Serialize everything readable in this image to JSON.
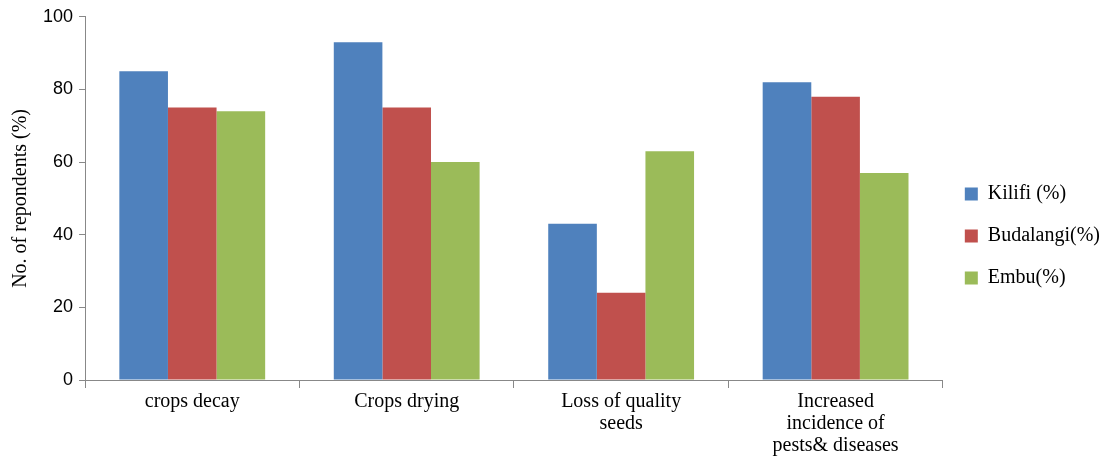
{
  "chart_data": {
    "type": "bar",
    "ylabel": "No. of repondents (%)",
    "categories": [
      "crops decay",
      "Crops drying",
      "Loss of quality seeds",
      "Increased incidence of pests& diseases"
    ],
    "series": [
      {
        "name": "Kilifi (%)",
        "color": "#4f81bd",
        "values": [
          85,
          93,
          43,
          82
        ]
      },
      {
        "name": "Budalangi(%)",
        "color": "#c0504d",
        "values": [
          75,
          75,
          24,
          78
        ]
      },
      {
        "name": "Embu(%)",
        "color": "#9bbb59",
        "values": [
          74,
          60,
          63,
          57
        ]
      }
    ],
    "ylim": [
      0,
      100
    ],
    "yticks": [
      0,
      20,
      40,
      60,
      80,
      100
    ],
    "grid": false,
    "legend": "right"
  }
}
